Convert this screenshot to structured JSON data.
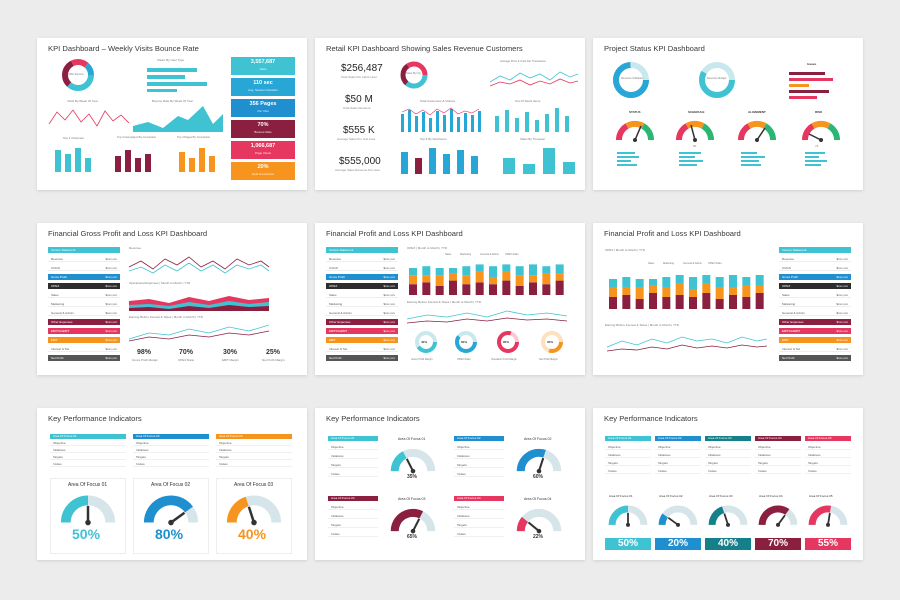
{
  "colors": {
    "teal": "#3fc3d3",
    "cyan": "#28a6d6",
    "blue": "#1f8fcf",
    "maroon": "#8b1f3f",
    "pink": "#e5375f",
    "orange": "#f7941d",
    "green": "#2bb673",
    "gray": "#555",
    "dark": "#2d2d2d",
    "light": "#c9e8ee"
  },
  "cards": [
    {
      "title": "KPI Dashboard – Weekly Visits Bounce Rate",
      "labels": {
        "donut": "Traffic Sources",
        "by_user": "Visitor By User Type",
        "by_week": "Visits By Week Of Year",
        "bounce": "Bounce Rate By Week Of Year",
        "channels": "Top 4 Channels",
        "campaigns": "Top 4 Campaigns By Conversion",
        "pages": "Top 4 Pages By Conversion"
      },
      "tiles": [
        {
          "value": "3,557,687",
          "label": "Visits"
        },
        {
          "value": "110 sec",
          "label": "Avg. Session Duration"
        },
        {
          "value": "356 Pages",
          "label": "Per Visit"
        },
        {
          "value": "70%",
          "label": "Bounce Rate"
        },
        {
          "value": "1,066,687",
          "label": "Page Views"
        },
        {
          "value": "20%",
          "label": "Goal Conversion"
        }
      ]
    },
    {
      "title": "Retail KPI Dashboard Showing Sales Revenue Customers",
      "stats": [
        {
          "value": "$256,487",
          "label": "Total Sales Per Labor Hour"
        },
        {
          "value": "$50 M",
          "label": "Total Sales Revenue"
        },
        {
          "value": "$555 K",
          "label": "Average Sales Per Unit Area"
        },
        {
          "value": "$555,000",
          "label": "Average Sales Revenue Per Hour"
        }
      ],
      "labels": {
        "donut": "Sales By City",
        "price": "Average Price & Units Per Transaction",
        "customers": "Total Customers & Visitors",
        "stock": "Out Of Stock Items",
        "sold": "Top 6 By Sold Items",
        "trends": "Sales By Trimester"
      }
    },
    {
      "title": "Project Status KPI Dashboard",
      "labels": {
        "d1": "Resource Utilization",
        "d2": "Resource Budget",
        "issues": "Issues",
        "g1": "STATUS",
        "g2": "SCHEDULE",
        "g3": "ALIGNMENT",
        "g4": "RISK",
        "g2v": "60",
        "g4v": "72"
      }
    },
    {
      "title": "Financial Gross Profit and Loss KPI Dashboard",
      "table": [
        {
          "label": "Income Statement",
          "value": "",
          "hl": "teal"
        },
        {
          "label": "Revenue",
          "value": "$xxx,xxx",
          "hl": ""
        },
        {
          "label": "COGS",
          "value": "$xxx,xxx",
          "hl": ""
        },
        {
          "label": "Gross Profit",
          "value": "$xxx,xxx",
          "hl": "blue"
        },
        {
          "label": "OPEX",
          "value": "$xxx,xxx",
          "hl": "dark"
        },
        {
          "label": "Sales",
          "value": "$xxx,xxx",
          "hl": ""
        },
        {
          "label": "Marketing",
          "value": "$xxx,xxx",
          "hl": ""
        },
        {
          "label": "General & Admin",
          "value": "$xxx,xxx",
          "hl": ""
        },
        {
          "label": "Other Expenses",
          "value": "$xxx,xxx",
          "hl": "maroon"
        },
        {
          "label": "EBITDA/EBIT",
          "value": "$xxx,xxx",
          "hl": "pink"
        },
        {
          "label": "EBIT",
          "value": "$xxx,xxx",
          "hl": "orange"
        },
        {
          "label": "Interest & Tax",
          "value": "$xxx,xxx",
          "hl": ""
        },
        {
          "label": "Net Profit",
          "value": "$xxx,xxx",
          "hl": "gray"
        }
      ],
      "labels": {
        "revenue": "Revenue",
        "opex": "Operational Expenses | Month to Month | YTD",
        "ebit": "Earning Before Interest & Taxes | Month to Month | YTD"
      },
      "margins": [
        {
          "value": "98%",
          "label": "Gross Profit Margin"
        },
        {
          "value": "70%",
          "label": "OPEX Ratio"
        },
        {
          "value": "30%",
          "label": "EBIT Margin"
        },
        {
          "value": "25%",
          "label": "Net Profit Margin"
        }
      ]
    },
    {
      "title": "Financial Profit and Loss KPI Dashboard",
      "labels": {
        "opex": "OPEX | Month to Month | YTD",
        "ebit": "Earning Before Interest & Taxes | Month to Month | YTD",
        "legend": [
          "Sales",
          "Marketing",
          "General & Admin",
          "OPEX Ratio"
        ]
      },
      "donuts": [
        {
          "value": "40%",
          "label": "Gross Profit Margin"
        },
        {
          "value": "60%",
          "label": "OPEX Ratio"
        },
        {
          "value": "80%",
          "label": "Operation Profit Margin"
        },
        {
          "value": "30%",
          "label": "Net Profit Margin"
        }
      ]
    },
    {
      "title": "Financial Profit and Loss KPI Dashboard",
      "labels": {
        "opex": "OPEX | Month to Month | YTD",
        "ebit": "Earning Before Interest & Taxes | Month to Month | YTD",
        "legend": [
          "Sales",
          "Marketing",
          "General & Admin",
          "OPEX Ratio"
        ]
      }
    },
    {
      "title": "Key Performance Indicators",
      "areas": [
        {
          "name": "Area Of Focus 01",
          "value": "50%",
          "level": 0.5
        },
        {
          "name": "Area Of Focus 02",
          "value": "80%",
          "level": 0.8
        },
        {
          "name": "Area Of Focus 03",
          "value": "40%",
          "level": 0.4
        }
      ],
      "rows": [
        "Objective",
        "Initiatives",
        "Targets",
        "Invites"
      ]
    },
    {
      "title": "Key Performance Indicators",
      "areas": [
        {
          "name": "Area Of Focus 01",
          "value": "35%",
          "level": 0.35
        },
        {
          "name": "Area Of Focus 02",
          "value": "60%",
          "level": 0.6
        },
        {
          "name": "Area Of Focus 03",
          "value": "65%",
          "level": 0.65
        },
        {
          "name": "Area Of Focus 04",
          "value": "22%",
          "level": 0.22
        }
      ],
      "rows": [
        "Objective",
        "Initiatives",
        "Targets",
        "Invites"
      ]
    },
    {
      "title": "Key Performance Indicators",
      "areas": [
        {
          "name": "Area Of Focus 01",
          "value": "50%",
          "level": 0.5
        },
        {
          "name": "Area Of Focus 02",
          "value": "20%",
          "level": 0.2
        },
        {
          "name": "Area Of Focus 03",
          "value": "40%",
          "level": 0.4
        },
        {
          "name": "Area Of Focus 04",
          "value": "70%",
          "level": 0.7
        },
        {
          "name": "Area Of Focus 05",
          "value": "55%",
          "level": 0.55
        }
      ],
      "rows": [
        "Objective",
        "Initiatives",
        "Targets",
        "Invites"
      ]
    }
  ]
}
